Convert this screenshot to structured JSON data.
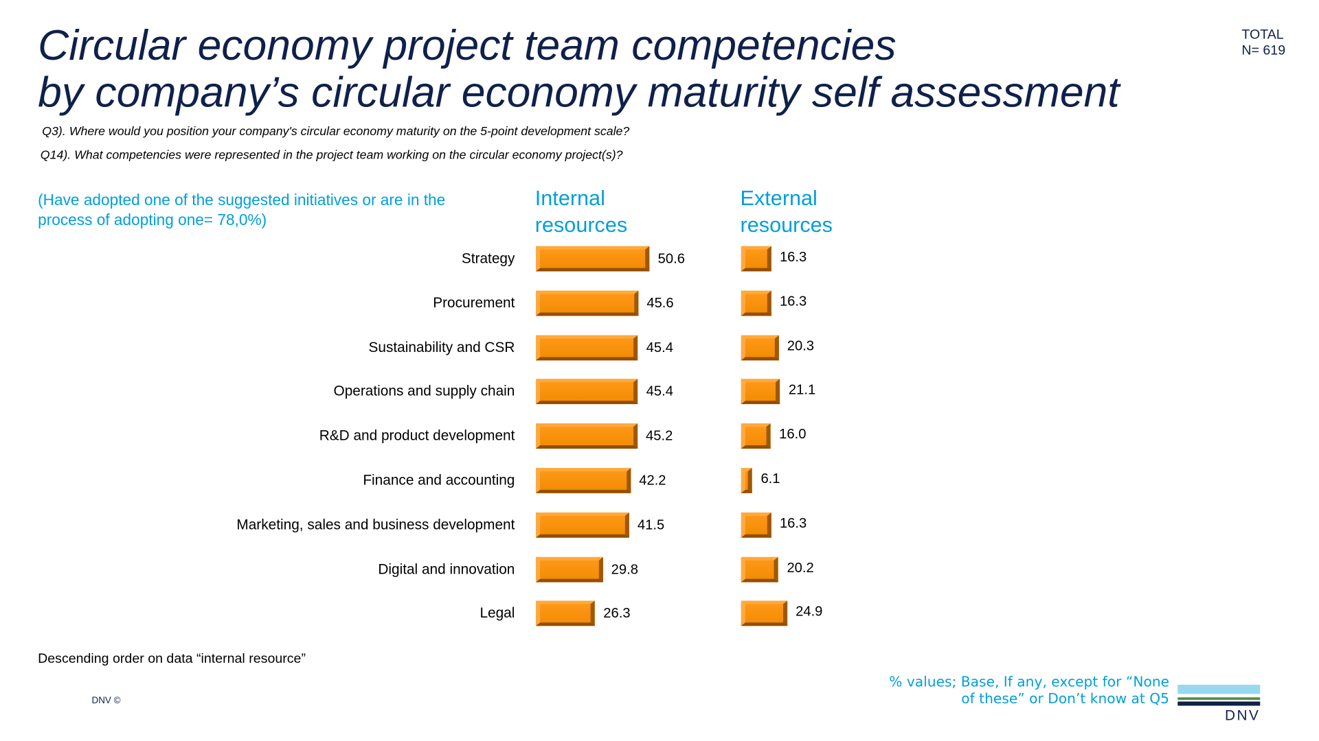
{
  "title_line1": "Circular economy project team competencies",
  "title_line2": "by company’s circular economy maturity self assessment",
  "total_label": "TOTAL",
  "n_label": "N= 619",
  "question_q3": "Q3). Where would you position your company's circular economy maturity on the 5-point development scale?",
  "question_q14": "Q14). What competencies were represented in the project team working on the circular economy project(s)?",
  "segment_note": "(Have adopted one of the suggested initiatives or are in the process of adopting one= 78,0%)",
  "footer_sort_note": "Descending order on data “internal resource”",
  "copyright": "DNV ©",
  "base_note_line1": "% values; Base, If any, except for “None",
  "base_note_line2": "of these” or Don’t know at Q5",
  "logo_text": "DNV",
  "colors": {
    "bar": "#f28a00",
    "accent": "#009fda",
    "title": "#0f204b"
  },
  "chart_data": {
    "type": "bar",
    "orientation": "horizontal",
    "categories": [
      "Strategy",
      "Procurement",
      "Sustainability and CSR",
      "Operations and supply chain",
      "R&D and product development",
      "Finance and accounting",
      "Marketing, sales and business development",
      "Digital and innovation",
      "Legal"
    ],
    "series": [
      {
        "name": "Internal resources",
        "values": [
          50.6,
          45.6,
          45.4,
          45.4,
          45.2,
          42.2,
          41.5,
          29.8,
          26.3
        ]
      },
      {
        "name": "External resources",
        "values": [
          16.3,
          16.3,
          20.3,
          21.1,
          16.0,
          6.1,
          16.3,
          20.2,
          24.9
        ]
      }
    ],
    "data_labels": true,
    "grid": false
  }
}
